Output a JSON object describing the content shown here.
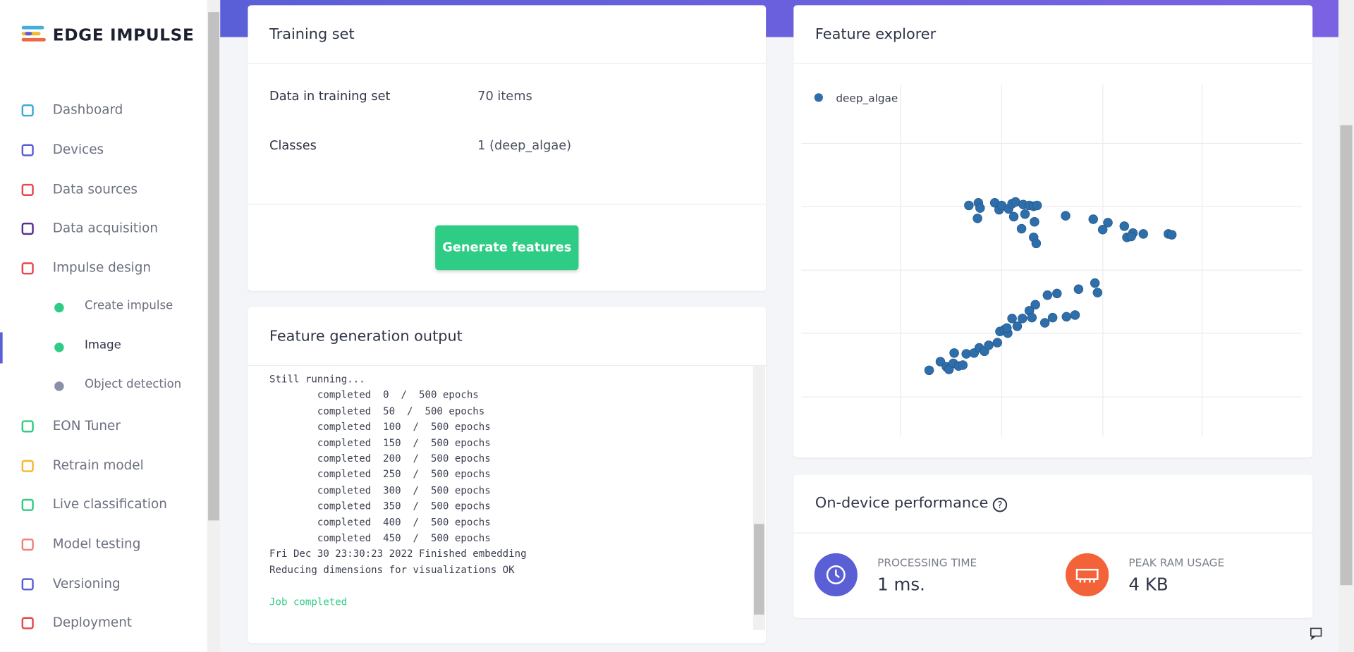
{
  "sidebar": {
    "logo": "EDGE IMPULSE",
    "items": [
      "Dashboard",
      "Devices",
      "Data sources",
      "Data acquisition",
      "Impulse design",
      "Create impulse",
      "Image",
      "Object detection",
      "EON Tuner",
      "Retrain model",
      "Live classification",
      "Model testing",
      "Versioning",
      "Deployment"
    ]
  },
  "training_set": {
    "title": "Training set",
    "rows": [
      [
        "Data in training set",
        "70 items"
      ],
      [
        "Classes",
        "1 (deep_algae)"
      ]
    ],
    "button": "Generate features"
  },
  "feature_output": {
    "title": "Feature generation output",
    "lines": [
      "Still running...",
      "        completed  0  /  500 epochs",
      "        completed  50  /  500 epochs",
      "        completed  100  /  500 epochs",
      "        completed  150  /  500 epochs",
      "        completed  200  /  500 epochs",
      "        completed  250  /  500 epochs",
      "        completed  300  /  500 epochs",
      "        completed  350  /  500 epochs",
      "        completed  400  /  500 epochs",
      "        completed  450  /  500 epochs",
      "Fri Dec 30 23:30:23 2022 Finished embedding",
      "Reducing dimensions for visualizations OK",
      "",
      "Job completed"
    ]
  },
  "chart_data": {
    "type": "scatter",
    "title": "Feature explorer",
    "grid": true,
    "xlim": [
      0,
      580
    ],
    "ylim": [
      0,
      408
    ],
    "series": [
      {
        "name": "deep_algae",
        "color": "#2e6fab",
        "x": [
          194,
          205,
          207,
          204,
          224,
          229,
          232,
          240,
          244,
          248,
          246,
          257,
          259,
          264,
          269,
          273,
          255,
          270,
          269,
          272,
          306,
          338,
          355,
          349,
          374,
          377,
          384,
          382,
          396,
          425,
          429,
          148,
          161,
          168,
          171,
          176,
          177,
          182,
          187,
          191,
          200,
          206,
          212,
          217,
          227,
          230,
          235,
          239,
          238,
          244,
          250,
          256,
          264,
          267,
          271,
          282,
          285,
          291,
          296,
          307,
          317,
          321,
          340,
          343
        ],
        "values": [
          268,
          271,
          265,
          253,
          271,
          263,
          268,
          264,
          270,
          272,
          255,
          269,
          258,
          268,
          267,
          268,
          241,
          249,
          231,
          224,
          256,
          252,
          248,
          240,
          244,
          231,
          236,
          232,
          235,
          235,
          234,
          77,
          87,
          81,
          78,
          85,
          97,
          82,
          83,
          96,
          97,
          103,
          99,
          106,
          109,
          122,
          124,
          120,
          126,
          137,
          128,
          137,
          146,
          138,
          153,
          132,
          164,
          138,
          166,
          139,
          141,
          171,
          178,
          167
        ]
      }
    ]
  },
  "performance": {
    "title": "On-device performance",
    "items": [
      {
        "label": "PROCESSING TIME",
        "value": "1 ms."
      },
      {
        "label": "PEAK RAM USAGE",
        "value": "4 KB"
      }
    ]
  }
}
